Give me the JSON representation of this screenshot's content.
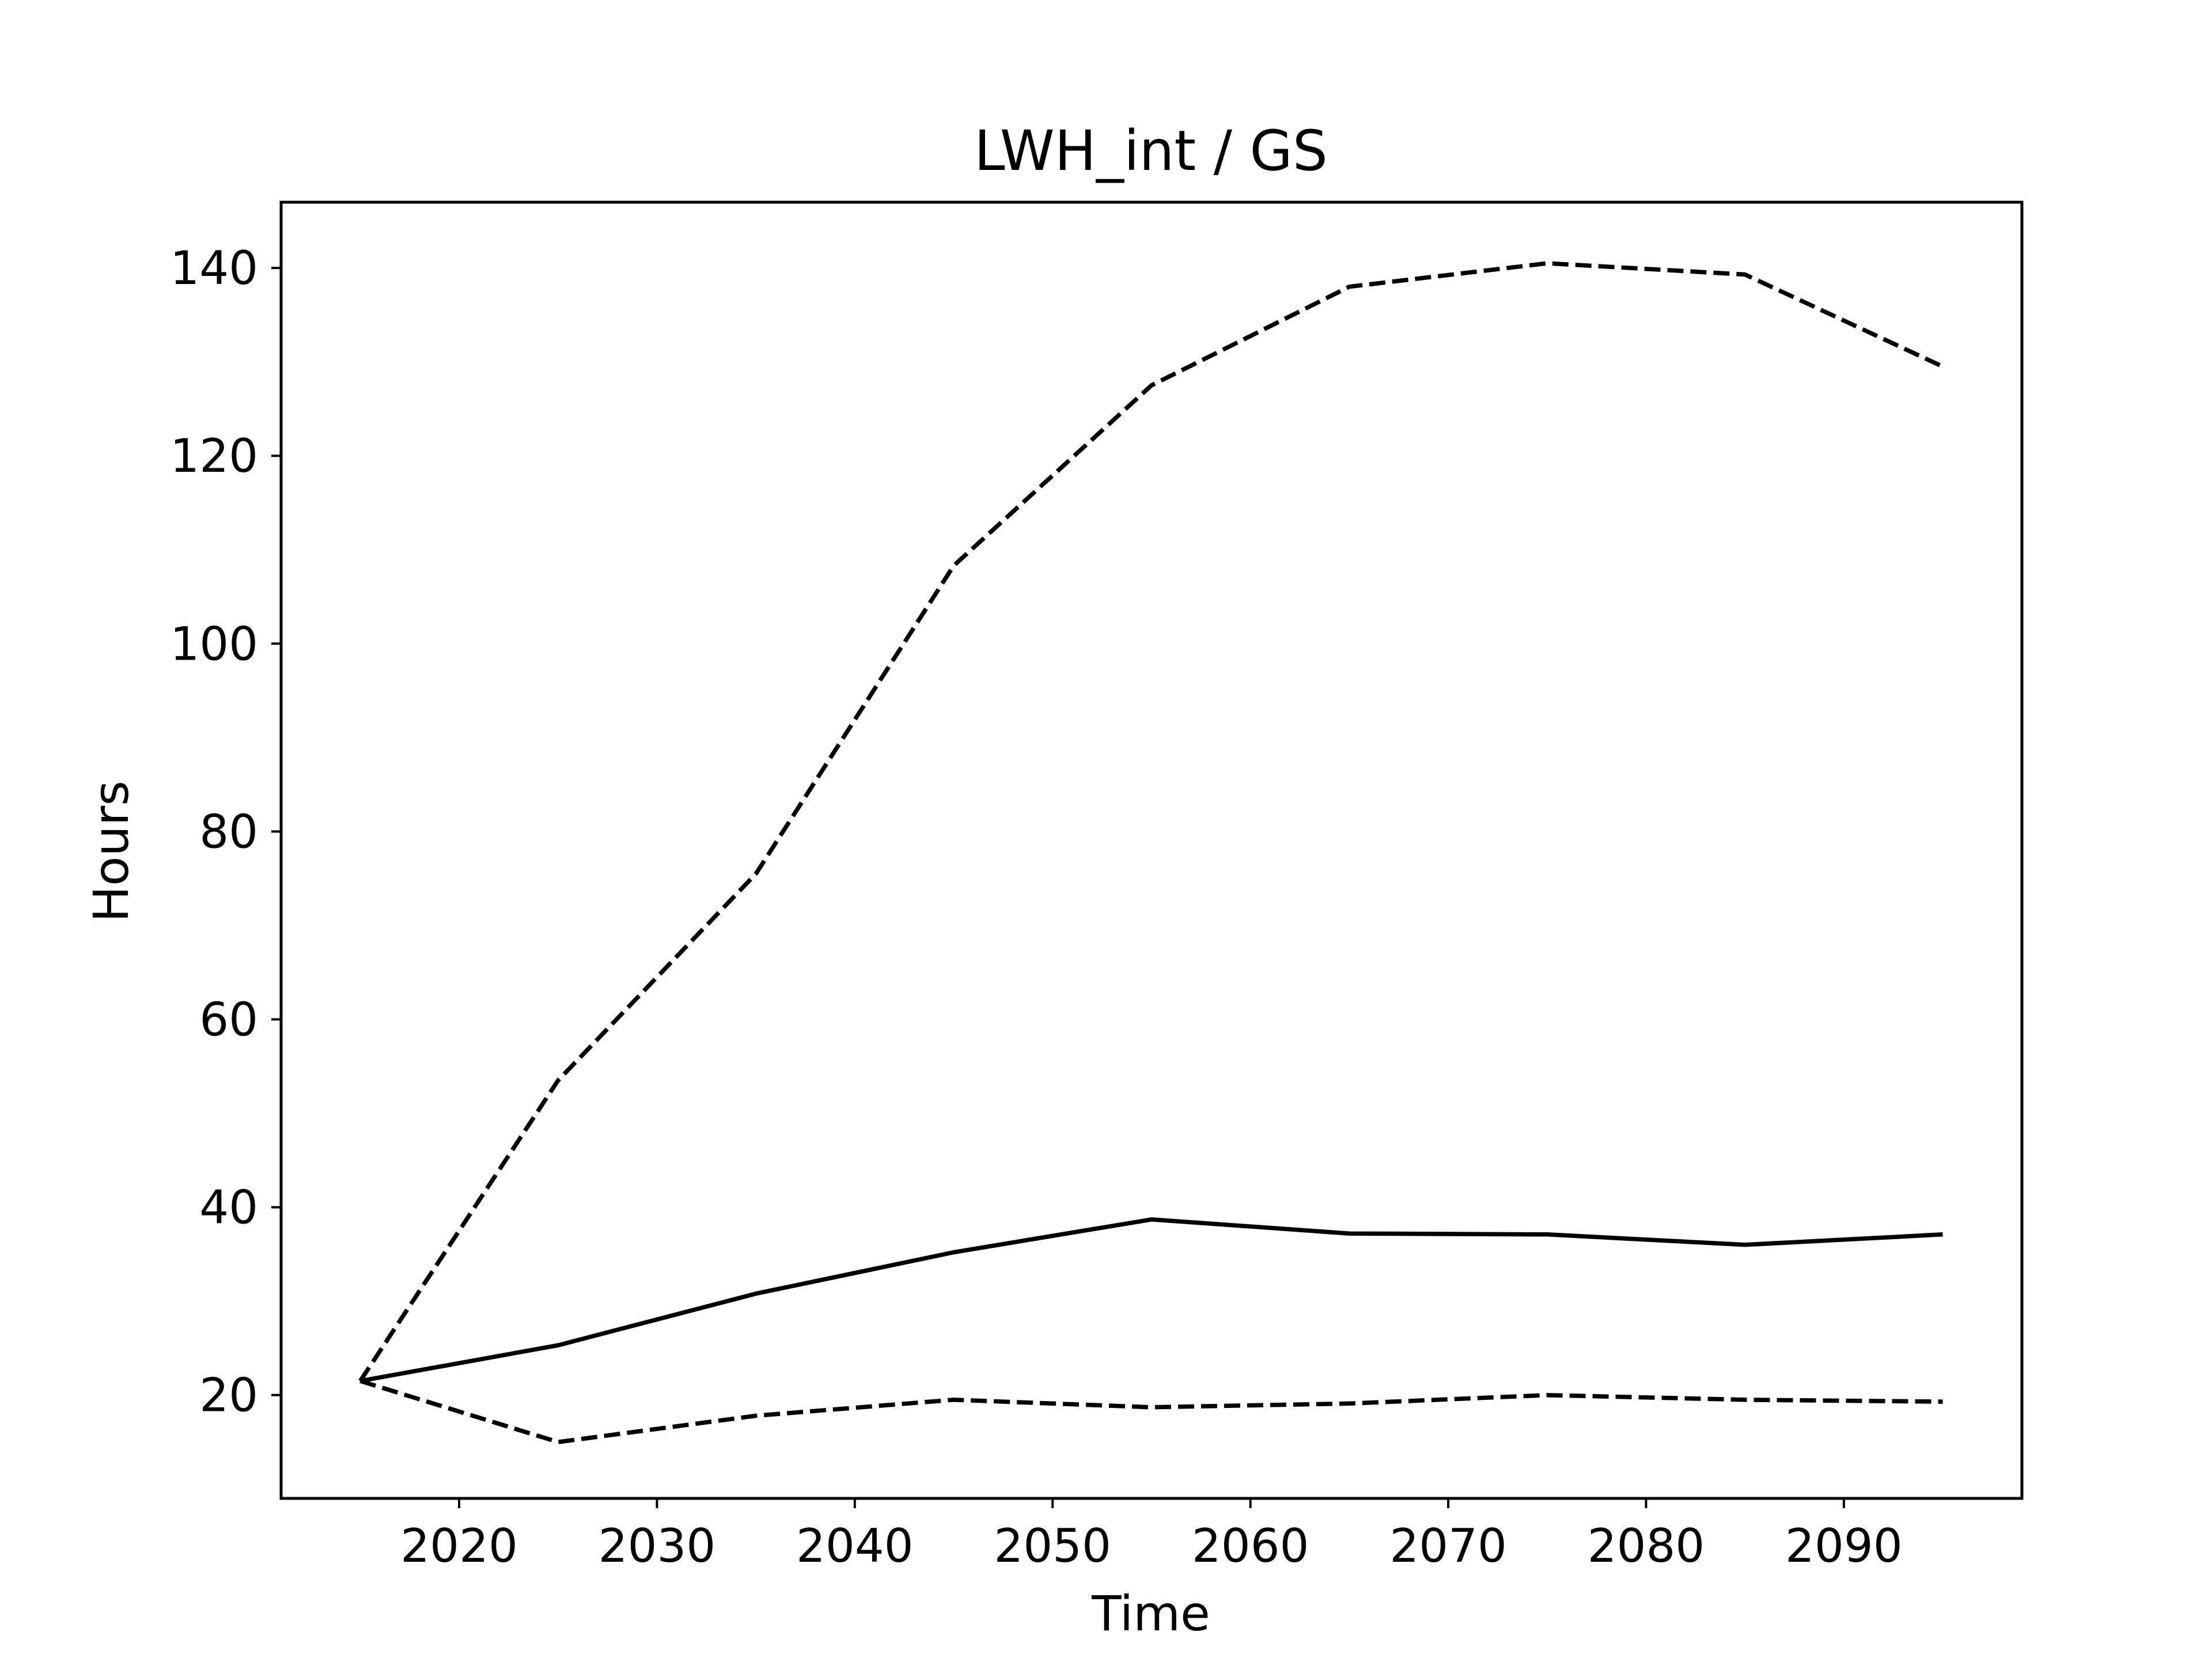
{
  "chart_data": {
    "type": "line",
    "title": "LWH_int / GS",
    "xlabel": "Time",
    "ylabel": "Hours",
    "xlim": [
      2011,
      2099
    ],
    "ylim": [
      9,
      147
    ],
    "xticks": [
      2020,
      2030,
      2040,
      2050,
      2060,
      2070,
      2080,
      2090
    ],
    "yticks": [
      20,
      40,
      60,
      80,
      100,
      120,
      140
    ],
    "grid": false,
    "legend": "none",
    "x": [
      2015,
      2025,
      2035,
      2045,
      2055,
      2065,
      2075,
      2085,
      2095
    ],
    "series": [
      {
        "style": "dashed",
        "color": "#000000",
        "values": [
          21.5,
          53.5,
          75.5,
          108.3,
          127.5,
          138.0,
          140.5,
          139.3,
          129.5
        ]
      },
      {
        "style": "solid",
        "color": "#000000",
        "values": [
          21.5,
          25.3,
          30.8,
          35.2,
          38.7,
          37.2,
          37.1,
          36.0,
          37.1
        ]
      },
      {
        "style": "dashed",
        "color": "#000000",
        "values": [
          21.5,
          15.0,
          17.8,
          19.5,
          18.7,
          19.1,
          20.0,
          19.5,
          19.3
        ]
      }
    ]
  }
}
